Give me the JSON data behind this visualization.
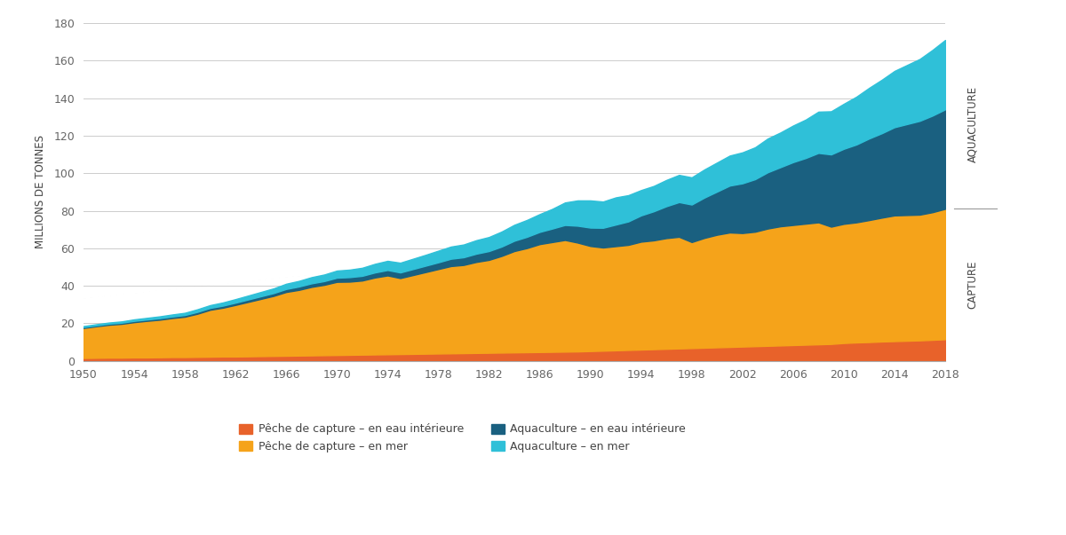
{
  "years": [
    1950,
    1951,
    1952,
    1953,
    1954,
    1955,
    1956,
    1957,
    1958,
    1959,
    1960,
    1961,
    1962,
    1963,
    1964,
    1965,
    1966,
    1967,
    1968,
    1969,
    1970,
    1971,
    1972,
    1973,
    1974,
    1975,
    1976,
    1977,
    1978,
    1979,
    1980,
    1981,
    1982,
    1983,
    1984,
    1985,
    1986,
    1987,
    1988,
    1989,
    1990,
    1991,
    1992,
    1993,
    1994,
    1995,
    1996,
    1997,
    1998,
    1999,
    2000,
    2001,
    2002,
    2003,
    2004,
    2005,
    2006,
    2007,
    2008,
    2009,
    2010,
    2011,
    2012,
    2013,
    2014,
    2015,
    2016,
    2017,
    2018
  ],
  "capture_inland": [
    1.5,
    1.6,
    1.7,
    1.7,
    1.8,
    1.8,
    1.9,
    2.0,
    2.0,
    2.1,
    2.2,
    2.3,
    2.3,
    2.4,
    2.5,
    2.6,
    2.7,
    2.8,
    2.9,
    3.0,
    3.1,
    3.2,
    3.3,
    3.4,
    3.5,
    3.6,
    3.7,
    3.8,
    3.9,
    4.0,
    4.1,
    4.2,
    4.3,
    4.4,
    4.5,
    4.6,
    4.7,
    4.8,
    4.9,
    5.0,
    5.2,
    5.4,
    5.6,
    5.8,
    6.0,
    6.2,
    6.4,
    6.6,
    6.8,
    7.0,
    7.2,
    7.4,
    7.6,
    7.8,
    8.0,
    8.2,
    8.4,
    8.6,
    8.8,
    9.0,
    9.5,
    9.8,
    10.0,
    10.3,
    10.5,
    10.7,
    10.9,
    11.2,
    11.5
  ],
  "capture_marine": [
    16.0,
    16.8,
    17.5,
    18.0,
    18.8,
    19.5,
    20.0,
    20.8,
    21.5,
    23.0,
    25.0,
    26.0,
    27.5,
    29.0,
    30.5,
    32.0,
    34.0,
    35.0,
    36.5,
    37.5,
    39.0,
    39.0,
    39.5,
    41.0,
    42.0,
    40.5,
    42.0,
    43.5,
    45.0,
    46.5,
    47.0,
    48.5,
    49.5,
    51.5,
    54.0,
    55.5,
    57.5,
    58.5,
    59.5,
    58.0,
    56.0,
    55.0,
    55.5,
    56.0,
    57.5,
    58.0,
    59.0,
    59.5,
    56.5,
    58.5,
    60.0,
    61.0,
    60.5,
    61.0,
    62.5,
    63.5,
    64.0,
    64.5,
    65.0,
    62.5,
    63.5,
    64.0,
    65.0,
    66.0,
    67.0,
    67.0,
    67.0,
    68.0,
    69.5
  ],
  "aqua_inland": [
    0.5,
    0.5,
    0.6,
    0.6,
    0.7,
    0.7,
    0.8,
    0.8,
    0.9,
    1.0,
    1.0,
    1.1,
    1.2,
    1.3,
    1.4,
    1.5,
    1.6,
    1.8,
    1.9,
    2.0,
    2.2,
    2.4,
    2.5,
    2.7,
    2.9,
    3.0,
    3.2,
    3.4,
    3.6,
    3.9,
    4.1,
    4.4,
    4.7,
    5.0,
    5.5,
    6.0,
    6.5,
    7.2,
    8.0,
    9.0,
    9.8,
    10.5,
    11.5,
    12.5,
    14.0,
    15.5,
    17.0,
    18.5,
    20.0,
    21.5,
    23.0,
    25.0,
    26.5,
    28.0,
    30.0,
    31.5,
    33.5,
    35.0,
    37.0,
    38.5,
    40.0,
    41.5,
    43.5,
    45.0,
    47.0,
    48.5,
    50.0,
    51.5,
    53.0
  ],
  "aqua_marine": [
    0.5,
    0.6,
    0.6,
    0.7,
    0.8,
    0.9,
    1.0,
    1.1,
    1.2,
    1.4,
    1.5,
    1.7,
    1.9,
    2.1,
    2.3,
    2.5,
    2.8,
    3.0,
    3.3,
    3.5,
    3.8,
    4.0,
    4.3,
    4.6,
    4.9,
    5.2,
    5.5,
    5.8,
    6.2,
    6.5,
    6.8,
    7.2,
    7.5,
    8.0,
    8.5,
    9.0,
    9.5,
    10.5,
    12.0,
    13.5,
    14.5,
    14.0,
    14.5,
    14.0,
    13.5,
    13.5,
    14.0,
    14.5,
    14.5,
    15.0,
    15.5,
    16.0,
    16.5,
    17.0,
    18.0,
    18.5,
    19.5,
    20.5,
    22.0,
    23.0,
    24.0,
    25.5,
    27.0,
    28.5,
    30.0,
    31.5,
    33.0,
    35.0,
    37.0
  ],
  "colors": {
    "capture_inland": "#E8622A",
    "capture_marine": "#F5A31A",
    "aqua_inland": "#1A6080",
    "aqua_marine": "#2FC0D8"
  },
  "labels": {
    "capture_inland": "Pêche de capture – en eau intérieure",
    "capture_marine": "Pêche de capture – en mer",
    "aqua_inland": "Aquaculture – en eau intérieure",
    "aqua_marine": "Aquaculture – en mer"
  },
  "ylabel": "MILLIONS DE TONNES",
  "ylim": [
    0,
    180
  ],
  "yticks": [
    0,
    20,
    40,
    60,
    80,
    100,
    120,
    140,
    160,
    180
  ],
  "right_label_aquaculture": "AQUACULTURE",
  "right_label_capture": "CAPTURE",
  "background_color": "#FFFFFF",
  "grid_color": "#CCCCCC"
}
